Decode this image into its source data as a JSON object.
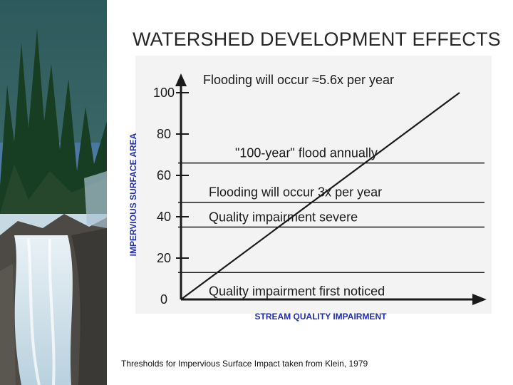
{
  "title": "WATERSHED DEVELOPMENT EFFECTS",
  "y_axis_label": "IMPERVIOUS SURFACE AREA",
  "x_axis_label": "STREAM QUALITY IMPAIRMENT",
  "source_note": "Thresholds for Impervious Surface Impact taken from Klein, 1979",
  "colors": {
    "axis_label": "#1f2db0",
    "chart_line": "#1a1a1a",
    "chart_bg": "#f3f3f3"
  },
  "chart_data": {
    "type": "line",
    "ylim": [
      0,
      100
    ],
    "yticks": [
      "0",
      "20",
      "40",
      "60",
      "80",
      "100"
    ],
    "series": [
      {
        "x": [
          0,
          100
        ],
        "y": [
          0,
          100
        ]
      }
    ],
    "thresholds": [
      {
        "y": 100,
        "label": "Flooding will occur ≈5.6x per year"
      },
      {
        "y": 66,
        "label": "\"100-year\" flood   annually"
      },
      {
        "y": 47,
        "label": "Flooding will   occur 3x per year"
      },
      {
        "y": 35,
        "label": "Quality   impairment severe"
      },
      {
        "y": 13,
        "label": "Quality impairment first noticed"
      }
    ]
  }
}
